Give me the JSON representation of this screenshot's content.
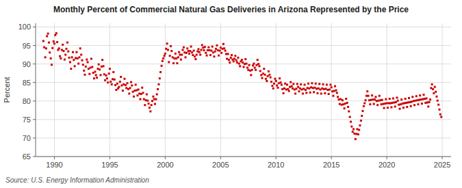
{
  "chart_data": {
    "type": "scatter",
    "title": "Monthly Percent of Commercial Natural Gas Deliveries in Arizona Represented by the Price",
    "ylabel": "Percent",
    "source": "Source: U.S. Energy Information Administration",
    "color": "#cc0000",
    "marker": "square",
    "grid": true,
    "xlim": [
      1988.3,
      2025.8
    ],
    "ylim": [
      65,
      101
    ],
    "xticks": [
      1990,
      1995,
      2000,
      2005,
      2010,
      2015,
      2020,
      2025
    ],
    "yticks": [
      65,
      70,
      75,
      80,
      85,
      90,
      95,
      100
    ],
    "x": [
      1989.0,
      1989.08,
      1989.17,
      1989.25,
      1989.33,
      1989.42,
      1989.5,
      1989.58,
      1989.67,
      1989.75,
      1989.83,
      1989.92,
      1990.0,
      1990.08,
      1990.17,
      1990.25,
      1990.33,
      1990.42,
      1990.5,
      1990.58,
      1990.67,
      1990.75,
      1990.83,
      1990.92,
      1991.0,
      1991.08,
      1991.17,
      1991.25,
      1991.33,
      1991.42,
      1991.5,
      1991.58,
      1991.67,
      1991.75,
      1991.83,
      1991.92,
      1992.0,
      1992.08,
      1992.17,
      1992.25,
      1992.33,
      1992.42,
      1992.5,
      1992.58,
      1992.67,
      1992.75,
      1992.83,
      1992.92,
      1993.0,
      1993.08,
      1993.17,
      1993.25,
      1993.33,
      1993.42,
      1993.5,
      1993.58,
      1993.67,
      1993.75,
      1993.83,
      1993.92,
      1994.0,
      1994.08,
      1994.17,
      1994.25,
      1994.33,
      1994.42,
      1994.5,
      1994.58,
      1994.67,
      1994.75,
      1994.83,
      1994.92,
      1995.0,
      1995.08,
      1995.17,
      1995.25,
      1995.33,
      1995.42,
      1995.5,
      1995.58,
      1995.67,
      1995.75,
      1995.83,
      1995.92,
      1996.0,
      1996.08,
      1996.17,
      1996.25,
      1996.33,
      1996.42,
      1996.5,
      1996.58,
      1996.67,
      1996.75,
      1996.83,
      1996.92,
      1997.0,
      1997.08,
      1997.17,
      1997.25,
      1997.33,
      1997.42,
      1997.5,
      1997.58,
      1997.67,
      1997.75,
      1997.83,
      1997.92,
      1998.0,
      1998.08,
      1998.17,
      1998.25,
      1998.33,
      1998.42,
      1998.5,
      1998.58,
      1998.67,
      1998.75,
      1998.83,
      1998.92,
      1999.0,
      1999.08,
      1999.17,
      1999.25,
      1999.33,
      1999.42,
      1999.5,
      1999.58,
      1999.67,
      1999.75,
      1999.83,
      1999.92,
      2000.0,
      2000.08,
      2000.17,
      2000.25,
      2000.33,
      2000.42,
      2000.5,
      2000.58,
      2000.67,
      2000.75,
      2000.83,
      2000.92,
      2001.0,
      2001.08,
      2001.17,
      2001.25,
      2001.33,
      2001.42,
      2001.5,
      2001.58,
      2001.67,
      2001.75,
      2001.83,
      2001.92,
      2002.0,
      2002.08,
      2002.17,
      2002.25,
      2002.33,
      2002.42,
      2002.5,
      2002.58,
      2002.67,
      2002.75,
      2002.83,
      2002.92,
      2003.0,
      2003.08,
      2003.17,
      2003.25,
      2003.33,
      2003.42,
      2003.5,
      2003.58,
      2003.67,
      2003.75,
      2003.83,
      2003.92,
      2004.0,
      2004.08,
      2004.17,
      2004.25,
      2004.33,
      2004.42,
      2004.5,
      2004.58,
      2004.67,
      2004.75,
      2004.83,
      2004.92,
      2005.0,
      2005.08,
      2005.17,
      2005.25,
      2005.33,
      2005.42,
      2005.5,
      2005.58,
      2005.67,
      2005.75,
      2005.83,
      2005.92,
      2006.0,
      2006.08,
      2006.17,
      2006.25,
      2006.33,
      2006.42,
      2006.5,
      2006.58,
      2006.67,
      2006.75,
      2006.83,
      2006.92,
      2007.0,
      2007.08,
      2007.17,
      2007.25,
      2007.33,
      2007.42,
      2007.5,
      2007.58,
      2007.67,
      2007.75,
      2007.83,
      2007.92,
      2008.0,
      2008.08,
      2008.17,
      2008.25,
      2008.33,
      2008.42,
      2008.5,
      2008.58,
      2008.67,
      2008.75,
      2008.83,
      2008.92,
      2009.0,
      2009.08,
      2009.17,
      2009.25,
      2009.33,
      2009.42,
      2009.5,
      2009.58,
      2009.67,
      2009.75,
      2009.83,
      2009.92,
      2010.0,
      2010.08,
      2010.17,
      2010.25,
      2010.33,
      2010.42,
      2010.5,
      2010.58,
      2010.67,
      2010.75,
      2010.83,
      2010.92,
      2011.0,
      2011.08,
      2011.17,
      2011.25,
      2011.33,
      2011.42,
      2011.5,
      2011.58,
      2011.67,
      2011.75,
      2011.83,
      2011.92,
      2012.0,
      2012.08,
      2012.17,
      2012.25,
      2012.33,
      2012.42,
      2012.5,
      2012.58,
      2012.67,
      2012.75,
      2012.83,
      2012.92,
      2013.0,
      2013.08,
      2013.17,
      2013.25,
      2013.33,
      2013.42,
      2013.5,
      2013.58,
      2013.67,
      2013.75,
      2013.83,
      2013.92,
      2014.0,
      2014.08,
      2014.17,
      2014.25,
      2014.33,
      2014.42,
      2014.5,
      2014.58,
      2014.67,
      2014.75,
      2014.83,
      2014.92,
      2015.0,
      2015.08,
      2015.17,
      2015.25,
      2015.33,
      2015.42,
      2015.5,
      2015.58,
      2015.67,
      2015.75,
      2015.83,
      2015.92,
      2016.0,
      2016.08,
      2016.17,
      2016.25,
      2016.33,
      2016.42,
      2016.5,
      2016.58,
      2016.67,
      2016.75,
      2016.83,
      2016.92,
      2017.0,
      2017.08,
      2017.17,
      2017.25,
      2017.33,
      2017.42,
      2017.5,
      2017.58,
      2017.67,
      2017.75,
      2017.83,
      2017.92,
      2018.0,
      2018.08,
      2018.17,
      2018.25,
      2018.33,
      2018.42,
      2018.5,
      2018.58,
      2018.67,
      2018.75,
      2018.83,
      2018.92,
      2019.0,
      2019.08,
      2019.17,
      2019.25,
      2019.33,
      2019.42,
      2019.5,
      2019.58,
      2019.67,
      2019.75,
      2019.83,
      2019.92,
      2020.0,
      2020.08,
      2020.17,
      2020.25,
      2020.33,
      2020.42,
      2020.5,
      2020.58,
      2020.67,
      2020.75,
      2020.83,
      2020.92,
      2021.0,
      2021.08,
      2021.17,
      2021.25,
      2021.33,
      2021.42,
      2021.5,
      2021.58,
      2021.67,
      2021.75,
      2021.83,
      2021.92,
      2022.0,
      2022.08,
      2022.17,
      2022.25,
      2022.33,
      2022.42,
      2022.5,
      2022.58,
      2022.67,
      2022.75,
      2022.83,
      2022.92,
      2023.0,
      2023.08,
      2023.17,
      2023.25,
      2023.33,
      2023.42,
      2023.5,
      2023.58,
      2023.67,
      2023.75,
      2023.83,
      2023.92,
      2024.0,
      2024.08,
      2024.17,
      2024.25,
      2024.33,
      2024.42,
      2024.5,
      2024.58,
      2024.67,
      2024.75,
      2024.83,
      2024.92
    ],
    "values": [
      96.2,
      94.5,
      91.8,
      94.2,
      97.5,
      98.2,
      95.8,
      93.1,
      91.5,
      89.8,
      94.3,
      96.1,
      95.5,
      97.8,
      98.3,
      95.9,
      93.8,
      94.2,
      92.1,
      91.5,
      93.8,
      95.2,
      93.5,
      91.2,
      92.5,
      94.1,
      95.8,
      93.4,
      91.7,
      90.5,
      88.7,
      91.8,
      93.2,
      91.1,
      89.4,
      91.6,
      93.2,
      91.5,
      90.1,
      91.8,
      94.2,
      92.5,
      91.0,
      89.8,
      88.2,
      87.1,
      89.3,
      91.2,
      90.5,
      88.7,
      87.3,
      89.0,
      91.4,
      89.2,
      87.6,
      86.1,
      87.9,
      87.0,
      86.3,
      88.7,
      89.9,
      88.5,
      87.0,
      89.3,
      91.1,
      89.4,
      87.2,
      85.6,
      86.9,
      86.1,
      85.0,
      87.4,
      88.7,
      85.2,
      84.5,
      85.9,
      87.8,
      85.8,
      84.3,
      83.0,
      84.7,
      83.4,
      83.8,
      85.2,
      86.5,
      84.2,
      82.8,
      84.5,
      86.0,
      84.3,
      83.5,
      84.8,
      83.2,
      82.0,
      83.5,
      85.1,
      84.2,
      82.5,
      81.2,
      82.8,
      84.4,
      82.9,
      81.5,
      83.1,
      82.0,
      80.5,
      81.9,
      83.6,
      82.2,
      80.5,
      78.9,
      80.2,
      81.8,
      80.1,
      79.3,
      78.2,
      77.2,
      78.9,
      80.0,
      81.2,
      80.5,
      79.2,
      80.5,
      81.8,
      83.2,
      84.5,
      86.1,
      87.8,
      89.5,
      90.8,
      91.5,
      92.2,
      92.8,
      94.1,
      95.5,
      93.8,
      90.5,
      92.2,
      94.8,
      93.5,
      91.8,
      90.2,
      91.5,
      92.8,
      91.5,
      90.2,
      91.8,
      93.2,
      92.5,
      91.2,
      92.5,
      93.8,
      94.5,
      93.1,
      91.8,
      93.0,
      94.2,
      93.5,
      92.8,
      93.5,
      94.7,
      93.1,
      92.4,
      93.6,
      92.0,
      91.3,
      92.5,
      93.4,
      94.0,
      93.2,
      92.5,
      93.8,
      95.1,
      94.4,
      93.7,
      94.6,
      93.0,
      92.3,
      93.7,
      94.5,
      93.7,
      92.4,
      93.6,
      94.7,
      93.1,
      92.0,
      93.4,
      94.1,
      95.0,
      93.7,
      92.3,
      93.6,
      94.4,
      93.0,
      94.1,
      95.4,
      94.2,
      93.6,
      92.7,
      91.4,
      92.7,
      91.1,
      90.4,
      91.7,
      92.4,
      91.2,
      90.7,
      91.4,
      92.2,
      91.0,
      90.4,
      91.7,
      90.1,
      89.4,
      90.7,
      91.1,
      90.4,
      89.2,
      90.0,
      91.3,
      90.1,
      89.0,
      88.4,
      89.7,
      88.2,
      87.0,
      88.4,
      89.6,
      90.1,
      89.0,
      88.4,
      89.7,
      91.1,
      90.0,
      89.4,
      88.1,
      87.0,
      86.2,
      87.4,
      88.7,
      87.1,
      86.0,
      85.4,
      86.7,
      88.0,
      87.1,
      86.4,
      85.2,
      84.1,
      83.4,
      84.7,
      86.0,
      85.4,
      84.2,
      83.6,
      84.8,
      86.1,
      85.0,
      84.4,
      83.2,
      82.1,
      83.4,
      84.7,
      83.1,
      84.4,
      83.2,
      82.7,
      83.8,
      85.1,
      84.0,
      83.4,
      84.6,
      83.1,
      82.0,
      83.3,
      84.6,
      83.8,
      82.6,
      83.4,
      84.5,
      83.1,
      82.0,
      83.3,
      84.4,
      83.0,
      82.2,
      83.5,
      84.7,
      83.4,
      82.3,
      83.7,
      84.8,
      83.5,
      82.4,
      83.6,
      84.7,
      83.3,
      82.1,
      83.4,
      84.6,
      83.1,
      82.0,
      83.4,
      84.5,
      83.2,
      82.1,
      83.3,
      84.4,
      83.0,
      81.9,
      83.1,
      84.4,
      83.7,
      82.6,
      81.4,
      82.7,
      84.0,
      82.9,
      82.2,
      81.1,
      80.4,
      79.2,
      80.5,
      79.0,
      80.2,
      79.1,
      78.0,
      79.3,
      80.6,
      79.5,
      78.4,
      77.2,
      75.7,
      74.4,
      73.1,
      71.7,
      72.4,
      71.2,
      69.7,
      71.1,
      72.4,
      71.0,
      72.2,
      73.4,
      74.7,
      76.0,
      77.3,
      78.6,
      79.4,
      80.2,
      81.4,
      82.6,
      81.4,
      80.2,
      79.1,
      80.3,
      81.5,
      80.4,
      79.2,
      80.4,
      81.1,
      80.0,
      78.9,
      80.1,
      81.4,
      80.2,
      79.1,
      80.3,
      79.2,
      78.1,
      79.3,
      80.5,
      79.4,
      78.2,
      79.4,
      80.6,
      79.4,
      78.3,
      79.5,
      80.7,
      79.6,
      78.5,
      79.7,
      80.9,
      80.1,
      79.0,
      77.9,
      79.1,
      80.4,
      79.3,
      78.2,
      79.4,
      80.6,
      79.5,
      78.4,
      79.6,
      80.8,
      79.7,
      78.6,
      79.8,
      81.1,
      80.0,
      78.9,
      80.1,
      81.3,
      80.2,
      79.1,
      80.3,
      81.5,
      80.4,
      79.3,
      80.5,
      81.7,
      80.6,
      79.5,
      80.7,
      79.6,
      78.5,
      79.7,
      80.4,
      83.5,
      84.5,
      83.2,
      82.1,
      83.8,
      82.5,
      81.2,
      80.1,
      79.0,
      77.7,
      76.4,
      75.7
    ]
  }
}
